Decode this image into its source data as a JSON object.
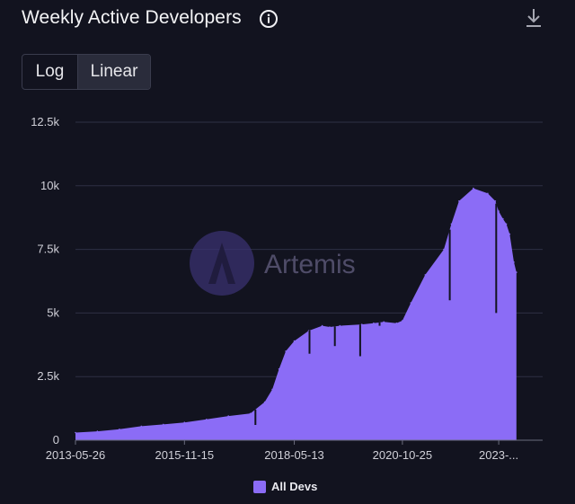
{
  "header": {
    "title": "Weekly Active Developers",
    "info_icon": "info-icon",
    "download_icon": "download-icon"
  },
  "scale_toggle": {
    "options": [
      "Log",
      "Linear"
    ],
    "selected": "Linear"
  },
  "watermark": {
    "text": "Artemis"
  },
  "colors": {
    "background": "#12131f",
    "series": "#8b6cf6",
    "grid": "#2e3044",
    "axis_text": "#d0d0d8"
  },
  "chart_data": {
    "type": "area",
    "title": "Weekly Active Developers",
    "x_axis_type": "date",
    "xlim": [
      "2013-05-26",
      "2023-12-31"
    ],
    "ylim": [
      0,
      12500
    ],
    "y_ticks": [
      {
        "value": 0,
        "label": "0"
      },
      {
        "value": 2500,
        "label": "2.5k"
      },
      {
        "value": 5000,
        "label": "5k"
      },
      {
        "value": 7500,
        "label": "7.5k"
      },
      {
        "value": 10000,
        "label": "10k"
      },
      {
        "value": 12500,
        "label": "12.5k"
      }
    ],
    "x_ticks": [
      {
        "value": "2013-05-26",
        "label": "2013-05-26"
      },
      {
        "value": "2015-11-15",
        "label": "2015-11-15"
      },
      {
        "value": "2018-05-13",
        "label": "2018-05-13"
      },
      {
        "value": "2020-10-25",
        "label": "2020-10-25"
      },
      {
        "value": "2023-01-01",
        "label": "2023-..."
      }
    ],
    "grid": true,
    "legend": "bottom-center",
    "series": [
      {
        "name": "All Devs",
        "points": [
          [
            "2013-05-26",
            300
          ],
          [
            "2013-11-24",
            350
          ],
          [
            "2014-05-25",
            430
          ],
          [
            "2014-11-23",
            550
          ],
          [
            "2015-05-24",
            620
          ],
          [
            "2015-11-15",
            700
          ],
          [
            "2016-05-15",
            820
          ],
          [
            "2016-11-13",
            950
          ],
          [
            "2017-05-14",
            1050
          ],
          [
            "2017-09-10",
            1500
          ],
          [
            "2017-11-12",
            2000
          ],
          [
            "2018-01-07",
            2800
          ],
          [
            "2018-03-04",
            3500
          ],
          [
            "2018-05-13",
            3900
          ],
          [
            "2018-09-09",
            4300
          ],
          [
            "2018-12-30",
            4500
          ],
          [
            "2019-03-03",
            4450
          ],
          [
            "2019-05-26",
            4500
          ],
          [
            "2019-11-24",
            4550
          ],
          [
            "2020-03-01",
            4600
          ],
          [
            "2020-05-24",
            4650
          ],
          [
            "2020-09-06",
            4600
          ],
          [
            "2020-10-25",
            4700
          ],
          [
            "2021-01-03",
            5400
          ],
          [
            "2021-05-02",
            6500
          ],
          [
            "2021-10-03",
            7500
          ],
          [
            "2021-12-05",
            8500
          ],
          [
            "2022-02-06",
            9400
          ],
          [
            "2022-06-05",
            9900
          ],
          [
            "2022-10-02",
            9700
          ],
          [
            "2022-12-04",
            9400
          ],
          [
            "2023-01-01",
            9000
          ],
          [
            "2023-02-05",
            8700
          ],
          [
            "2023-03-05",
            8500
          ],
          [
            "2023-04-02",
            8100
          ],
          [
            "2023-05-07",
            7000
          ],
          [
            "2023-05-28",
            6600
          ]
        ],
        "dips": [
          [
            "2017-06-25",
            600
          ],
          [
            "2018-09-16",
            3400
          ],
          [
            "2019-04-14",
            3700
          ],
          [
            "2019-11-10",
            3300
          ],
          [
            "2020-04-19",
            4500
          ],
          [
            "2021-11-21",
            5500
          ],
          [
            "2022-12-11",
            5000
          ]
        ]
      }
    ]
  },
  "legend": {
    "label": "All Devs"
  }
}
